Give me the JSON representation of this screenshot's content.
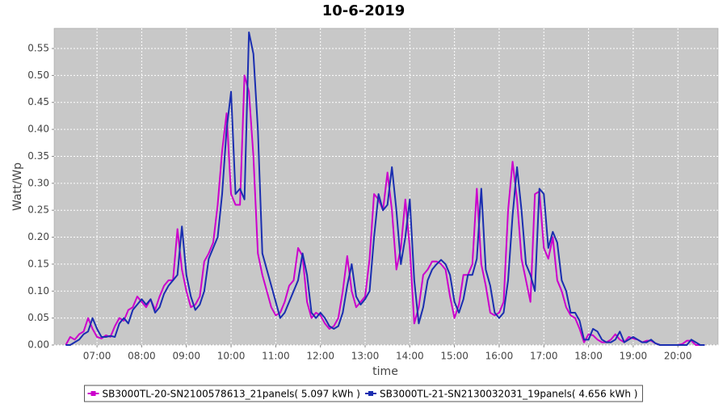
{
  "chart_data": {
    "type": "line",
    "title": "10-6-2019",
    "x_label": "time",
    "y_label": "Watt/Wp",
    "xlim": [
      6.04,
      20.9
    ],
    "ylim": [
      0,
      0.5875
    ],
    "xticks": [
      {
        "value": 7,
        "label": "07:00"
      },
      {
        "value": 8,
        "label": "08:00"
      },
      {
        "value": 9,
        "label": "09:00"
      },
      {
        "value": 10,
        "label": "10:00"
      },
      {
        "value": 11,
        "label": "11:00"
      },
      {
        "value": 12,
        "label": "12:00"
      },
      {
        "value": 13,
        "label": "13:00"
      },
      {
        "value": 14,
        "label": "14:00"
      },
      {
        "value": 15,
        "label": "15:00"
      },
      {
        "value": 16,
        "label": "16:00"
      },
      {
        "value": 17,
        "label": "17:00"
      },
      {
        "value": 18,
        "label": "18:00"
      },
      {
        "value": 19,
        "label": "19:00"
      },
      {
        "value": 20,
        "label": "20:00"
      }
    ],
    "yticks": [
      {
        "value": 0,
        "label": "0.00"
      },
      0.05,
      {
        "value": 0.1,
        "label": "0.10"
      },
      0.15,
      {
        "value": 0.2,
        "label": "0.20"
      },
      0.25,
      {
        "value": 0.3,
        "label": "0.30"
      },
      0.35,
      {
        "value": 0.4,
        "label": "0.40"
      },
      0.45,
      {
        "value": 0.5,
        "label": "0.50"
      },
      0.55
    ],
    "grid": true,
    "legend": "bottom",
    "x": [
      6.3,
      6.4,
      6.5,
      6.6,
      6.7,
      6.8,
      6.9,
      7.0,
      7.1,
      7.2,
      7.3,
      7.4,
      7.5,
      7.6,
      7.7,
      7.8,
      7.9,
      8.0,
      8.1,
      8.2,
      8.3,
      8.4,
      8.5,
      8.6,
      8.7,
      8.8,
      8.9,
      9.0,
      9.1,
      9.2,
      9.3,
      9.4,
      9.5,
      9.6,
      9.7,
      9.8,
      9.9,
      10.0,
      10.1,
      10.2,
      10.3,
      10.4,
      10.5,
      10.6,
      10.7,
      10.8,
      10.9,
      11.0,
      11.1,
      11.2,
      11.3,
      11.4,
      11.5,
      11.6,
      11.7,
      11.8,
      11.9,
      12.0,
      12.1,
      12.2,
      12.3,
      12.4,
      12.5,
      12.6,
      12.7,
      12.8,
      12.9,
      13.0,
      13.1,
      13.2,
      13.3,
      13.4,
      13.5,
      13.6,
      13.7,
      13.8,
      13.9,
      14.0,
      14.1,
      14.2,
      14.3,
      14.4,
      14.5,
      14.6,
      14.7,
      14.8,
      14.9,
      15.0,
      15.1,
      15.2,
      15.3,
      15.4,
      15.5,
      15.6,
      15.7,
      15.8,
      15.9,
      16.0,
      16.1,
      16.2,
      16.3,
      16.4,
      16.5,
      16.6,
      16.7,
      16.8,
      16.9,
      17.0,
      17.1,
      17.2,
      17.3,
      17.4,
      17.5,
      17.6,
      17.7,
      17.8,
      17.9,
      18.0,
      18.1,
      18.2,
      18.3,
      18.4,
      18.5,
      18.6,
      18.7,
      18.8,
      18.9,
      19.0,
      19.1,
      19.2,
      19.3,
      19.4,
      19.5,
      19.6,
      19.7,
      19.8,
      19.9,
      20.0,
      20.1,
      20.2,
      20.3,
      20.4,
      20.5,
      20.6
    ],
    "series": [
      {
        "name": "SB3000TL-20-SN2100578613_21panels( 5.097 kWh )",
        "color": "#cc00cc",
        "values": [
          0,
          0.015,
          0.01,
          0.02,
          0.025,
          0.05,
          0.03,
          0.015,
          0.012,
          0.018,
          0.015,
          0.035,
          0.05,
          0.045,
          0.065,
          0.07,
          0.09,
          0.08,
          0.07,
          0.085,
          0.065,
          0.09,
          0.11,
          0.12,
          0.12,
          0.215,
          0.14,
          0.1,
          0.07,
          0.075,
          0.09,
          0.155,
          0.17,
          0.19,
          0.26,
          0.36,
          0.43,
          0.28,
          0.26,
          0.26,
          0.5,
          0.47,
          0.35,
          0.17,
          0.13,
          0.1,
          0.07,
          0.055,
          0.06,
          0.08,
          0.11,
          0.12,
          0.18,
          0.165,
          0.08,
          0.05,
          0.06,
          0.055,
          0.04,
          0.03,
          0.035,
          0.05,
          0.1,
          0.165,
          0.1,
          0.07,
          0.08,
          0.09,
          0.16,
          0.28,
          0.27,
          0.25,
          0.32,
          0.25,
          0.14,
          0.18,
          0.27,
          0.18,
          0.04,
          0.07,
          0.13,
          0.14,
          0.155,
          0.155,
          0.15,
          0.14,
          0.09,
          0.05,
          0.075,
          0.13,
          0.13,
          0.15,
          0.29,
          0.15,
          0.11,
          0.06,
          0.055,
          0.06,
          0.08,
          0.25,
          0.34,
          0.27,
          0.16,
          0.12,
          0.08,
          0.28,
          0.285,
          0.18,
          0.16,
          0.2,
          0.12,
          0.1,
          0.07,
          0.055,
          0.05,
          0.03,
          0.005,
          0.02,
          0.018,
          0.01,
          0.005,
          0.005,
          0.01,
          0.02,
          0.01,
          0.005,
          0.015,
          0.012,
          0.01,
          0.005,
          0.008,
          0.008,
          0.003,
          0,
          0,
          0,
          0,
          0,
          0.002,
          0.008,
          0.008,
          0,
          0,
          0
        ]
      },
      {
        "name": "SB3000TL-21-SN2130032031_19panels( 4.656 kWh )",
        "color": "#1a2eb0",
        "values": [
          0,
          0,
          0.005,
          0.01,
          0.02,
          0.025,
          0.05,
          0.03,
          0.015,
          0.015,
          0.017,
          0.015,
          0.04,
          0.05,
          0.04,
          0.065,
          0.075,
          0.085,
          0.075,
          0.085,
          0.06,
          0.07,
          0.095,
          0.11,
          0.12,
          0.13,
          0.22,
          0.13,
          0.09,
          0.065,
          0.075,
          0.1,
          0.16,
          0.18,
          0.2,
          0.28,
          0.4,
          0.47,
          0.28,
          0.29,
          0.27,
          0.58,
          0.54,
          0.4,
          0.17,
          0.14,
          0.11,
          0.08,
          0.05,
          0.06,
          0.08,
          0.1,
          0.12,
          0.17,
          0.13,
          0.06,
          0.05,
          0.06,
          0.05,
          0.035,
          0.03,
          0.035,
          0.06,
          0.11,
          0.15,
          0.09,
          0.075,
          0.085,
          0.1,
          0.2,
          0.28,
          0.25,
          0.26,
          0.33,
          0.25,
          0.15,
          0.2,
          0.27,
          0.12,
          0.04,
          0.07,
          0.12,
          0.14,
          0.15,
          0.158,
          0.15,
          0.13,
          0.08,
          0.06,
          0.085,
          0.13,
          0.13,
          0.16,
          0.29,
          0.14,
          0.11,
          0.06,
          0.05,
          0.06,
          0.12,
          0.24,
          0.33,
          0.25,
          0.15,
          0.13,
          0.1,
          0.29,
          0.28,
          0.18,
          0.21,
          0.19,
          0.12,
          0.1,
          0.06,
          0.06,
          0.045,
          0.01,
          0.01,
          0.03,
          0.025,
          0.01,
          0.005,
          0.005,
          0.01,
          0.025,
          0.005,
          0.01,
          0.015,
          0.01,
          0.005,
          0.005,
          0.01,
          0.003,
          0,
          0,
          0,
          0,
          0,
          0,
          0,
          0.01,
          0.005,
          0,
          0
        ]
      }
    ]
  }
}
